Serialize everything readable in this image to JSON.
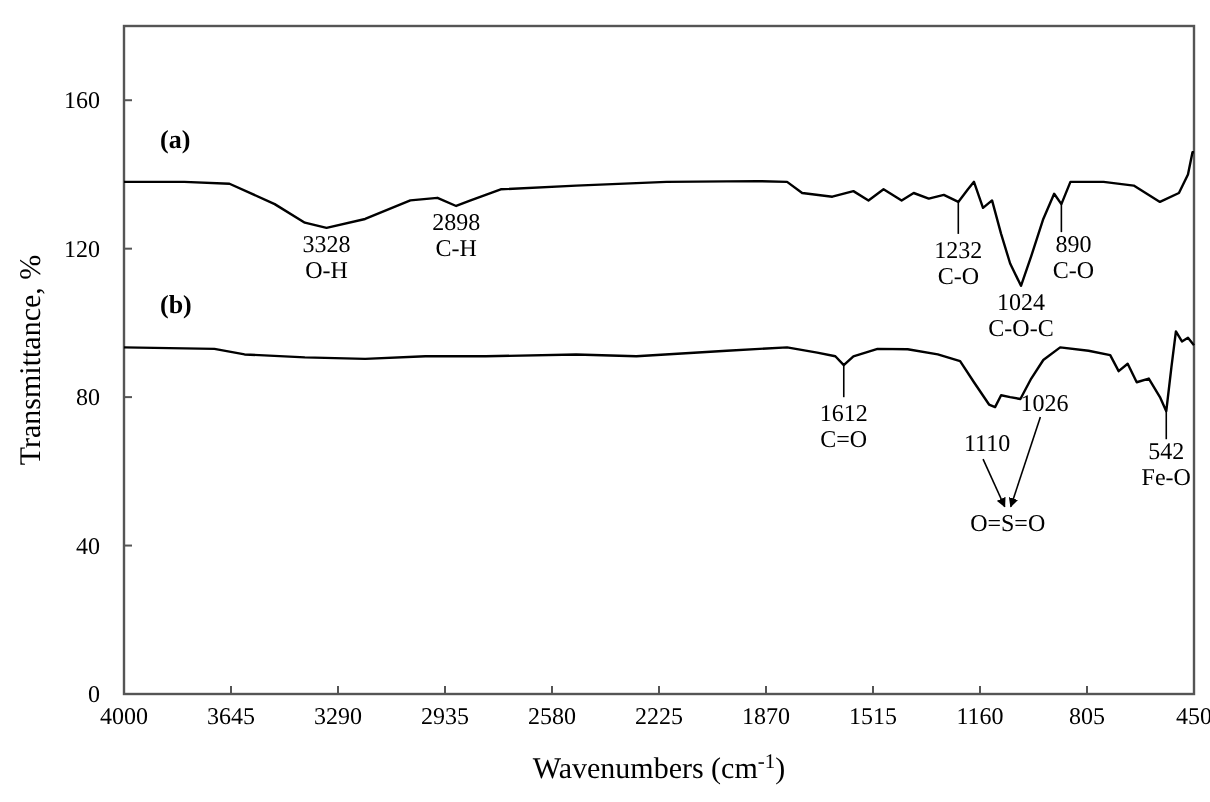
{
  "chart_data": {
    "type": "line",
    "xlabel": "Wavenumbers (cm$^{-1}$)",
    "ylabel": "Transmittance, %",
    "xlim": [
      4000,
      450
    ],
    "xticks": [
      4000,
      3645,
      3290,
      2935,
      2580,
      2225,
      1870,
      1515,
      1160,
      805,
      450
    ],
    "ylim": [
      0,
      180
    ],
    "yticks": [
      0,
      40,
      80,
      120,
      160
    ],
    "grid": false,
    "marker": "none",
    "line_style": "solid",
    "series": [
      {
        "name": "(a)",
        "color": "#000000",
        "x": [
          4000,
          3800,
          3650,
          3500,
          3400,
          3328,
          3200,
          3050,
          2960,
          2898,
          2850,
          2750,
          2500,
          2200,
          1900,
          1800,
          1750,
          1650,
          1580,
          1530,
          1480,
          1420,
          1380,
          1330,
          1280,
          1232,
          1200,
          1180,
          1150,
          1120,
          1090,
          1060,
          1024,
          990,
          950,
          914,
          890,
          860,
          750,
          650,
          563,
          500,
          470,
          455,
          450
        ],
        "values": [
          138,
          138,
          137.5,
          132,
          127,
          125.6,
          128,
          133,
          133.7,
          131.5,
          133,
          136,
          137,
          138,
          138.2,
          138,
          135,
          134,
          135.5,
          133,
          136,
          133,
          135,
          133.5,
          134.5,
          132.6,
          136,
          138,
          131,
          133,
          124,
          116,
          110,
          118,
          128,
          134.8,
          132,
          138,
          138,
          137,
          132.6,
          135,
          140,
          146,
          146
        ]
      },
      {
        "name": "(b)",
        "color": "#000000",
        "x": [
          4000,
          3700,
          3600,
          3400,
          3200,
          3000,
          2800,
          2500,
          2300,
          2000,
          1800,
          1700,
          1640,
          1612,
          1580,
          1500,
          1400,
          1300,
          1226,
          1180,
          1130,
          1110,
          1090,
          1060,
          1026,
          990,
          950,
          894,
          800,
          728,
          700,
          670,
          640,
          600,
          563,
          542,
          525,
          510,
          490,
          470,
          450
        ],
        "values": [
          93.4,
          93,
          91.5,
          90.7,
          90.3,
          91,
          91,
          91.5,
          91,
          92.5,
          93.4,
          92,
          91,
          88.6,
          91,
          93,
          92.9,
          91.5,
          89.7,
          84,
          78,
          77.3,
          80.5,
          80,
          79.5,
          85,
          90,
          93.4,
          92.5,
          91.3,
          87,
          89,
          84,
          85,
          80,
          76.2,
          88,
          97.7,
          95,
          96,
          94
        ]
      }
    ],
    "annotations": [
      {
        "text": "3328\nO-H",
        "x": 3328,
        "y": 125.6
      },
      {
        "text": "2898\nC-H",
        "x": 2898,
        "y": 131.5
      },
      {
        "text": "1232\nC-O",
        "x": 1232,
        "y": 132.6
      },
      {
        "text": "1024\nC-O-C",
        "x": 1024,
        "y": 110
      },
      {
        "text": "890\nC-O",
        "x": 890,
        "y": 132
      },
      {
        "text": "1612\nC=O",
        "x": 1612,
        "y": 88.6
      },
      {
        "text": "1110",
        "x": 1110,
        "y": 77.3
      },
      {
        "text": "1026",
        "x": 1026,
        "y": 79.5
      },
      {
        "text": "542\nFe-O",
        "x": 542,
        "y": 76.2
      },
      "O=S=O"
    ]
  }
}
